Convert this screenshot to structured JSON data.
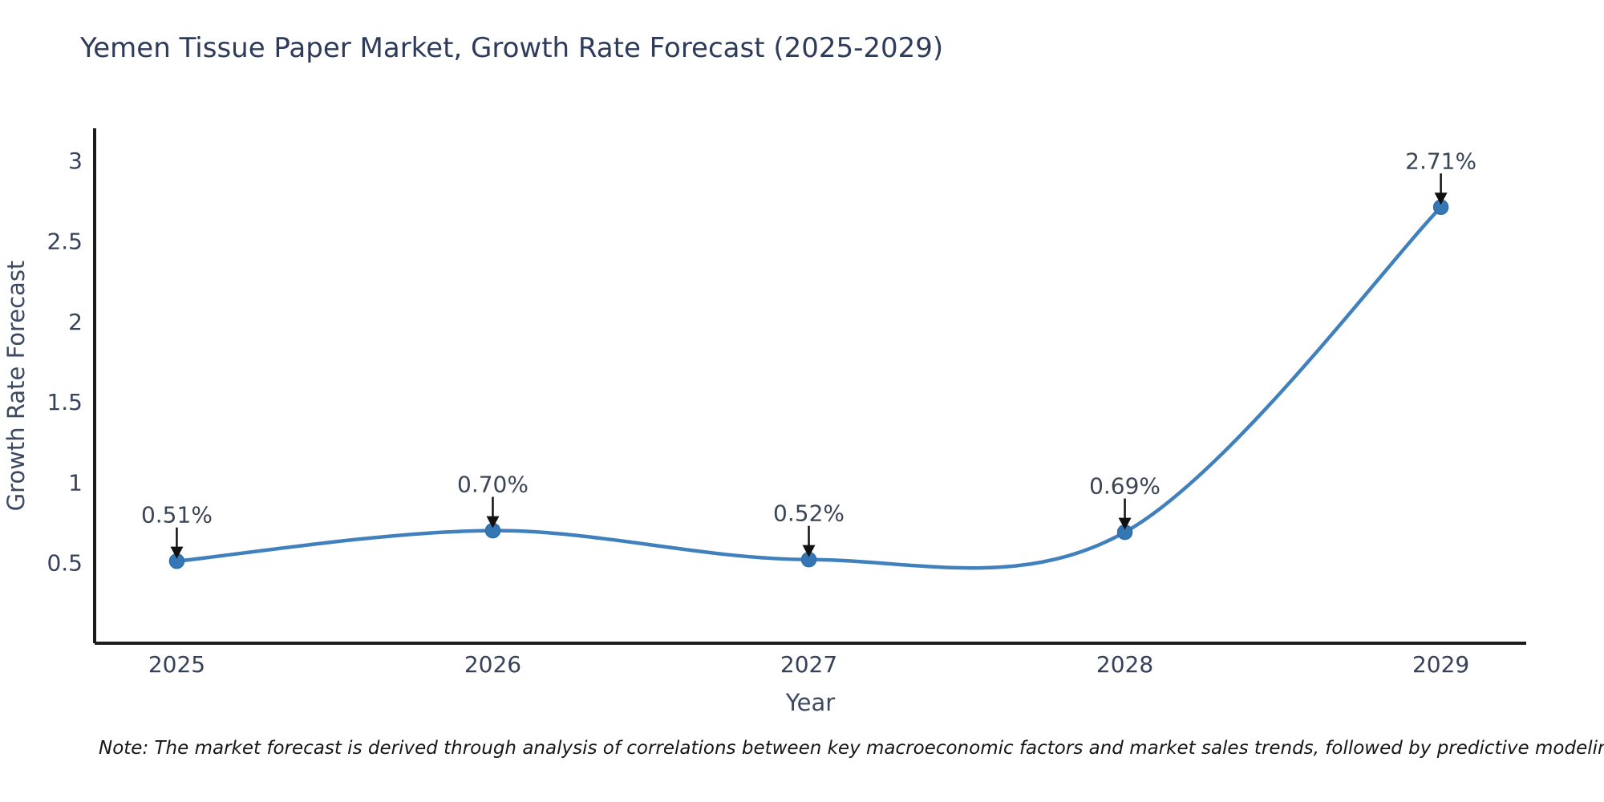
{
  "title": "Yemen Tissue Paper Market, Growth Rate Forecast (2025-2029)",
  "note": "Note: The market forecast is derived through analysis of correlations between key macroeconomic factors and market sales trends, followed by predictive modeling to project future sales",
  "chart_data": {
    "type": "line",
    "title": "Yemen Tissue Paper Market, Growth Rate Forecast (2025-2029)",
    "xlabel": "Year",
    "ylabel": "Growth Rate Forecast",
    "x": [
      2025,
      2026,
      2027,
      2028,
      2029
    ],
    "y": [
      0.51,
      0.7,
      0.52,
      0.69,
      2.71
    ],
    "point_labels": [
      "0.51%",
      "0.70%",
      "0.52%",
      "0.69%",
      "2.71%"
    ],
    "xtick_labels": [
      "2025",
      "2026",
      "2027",
      "2028",
      "2029"
    ],
    "ytick_values": [
      0.5,
      1,
      1.5,
      2,
      2.5,
      3
    ],
    "ytick_labels": [
      "0.5",
      "1",
      "1.5",
      "2",
      "2.5",
      "3"
    ],
    "xlim": [
      2024.74,
      2029.27
    ],
    "ylim": [
      0,
      3.2
    ],
    "grid": false,
    "legend": "none",
    "line_shape": "spline",
    "colors": {
      "line": "#4081bd",
      "marker_fill": "#3577b4",
      "marker_stroke": "#2f6da8",
      "axis_line": "#1c1c1c",
      "tick_text": "#36415a",
      "annotation_text": "#3a4556",
      "arrow": "#111111",
      "axis_title_text": "#3c4961",
      "title_text": "#2e3c5a",
      "background": "#ffffff"
    }
  }
}
